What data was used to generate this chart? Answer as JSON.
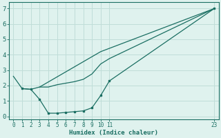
{
  "xlabel": "Humidex (Indice chaleur)",
  "bg_color": "#dff2ee",
  "grid_color": "#c0ddd8",
  "line_color": "#1a6e62",
  "xlim": [
    -0.5,
    23.5
  ],
  "ylim": [
    -0.2,
    7.4
  ],
  "xticks": [
    0,
    1,
    2,
    3,
    4,
    5,
    6,
    7,
    8,
    9,
    10,
    11,
    23
  ],
  "yticks": [
    0,
    1,
    2,
    3,
    4,
    5,
    6,
    7
  ],
  "line1_x": [
    0,
    1,
    2,
    3,
    4,
    5,
    6,
    7,
    8,
    9,
    10,
    11,
    23
  ],
  "line1_y": [
    2.6,
    1.8,
    1.75,
    1.9,
    1.9,
    2.05,
    2.15,
    2.25,
    2.4,
    2.75,
    3.4,
    3.75,
    7.0
  ],
  "line2_x": [
    1,
    2,
    3,
    4,
    5,
    6,
    7,
    8,
    9,
    10,
    11,
    23
  ],
  "line2_y": [
    1.8,
    1.75,
    1.1,
    0.2,
    0.2,
    0.25,
    0.3,
    0.35,
    0.55,
    1.35,
    2.3,
    7.0
  ],
  "line3_x": [
    3,
    10,
    23
  ],
  "line3_y": [
    1.9,
    4.2,
    7.0
  ]
}
